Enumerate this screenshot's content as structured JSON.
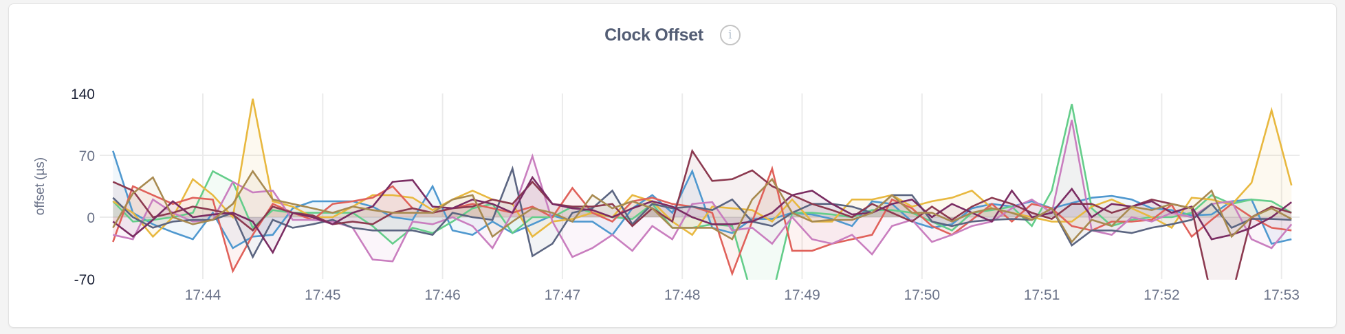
{
  "panel": {
    "title": "Clock Offset",
    "info_icon": "info-circle-icon"
  },
  "chart_data": {
    "type": "area",
    "title": "Clock Offset",
    "xlabel": "",
    "ylabel": "offset (µs)",
    "ylim": [
      -70,
      140
    ],
    "yticks": [
      {
        "value": 140,
        "label": "140",
        "color": "#1a2035"
      },
      {
        "value": 70,
        "label": "70",
        "color": "#6b7389"
      },
      {
        "value": 0,
        "label": "0",
        "color": "#6b7389"
      },
      {
        "value": -70,
        "label": "-70",
        "color": "#1a2035"
      }
    ],
    "xticks": [
      "17:44",
      "17:45",
      "17:46",
      "17:47",
      "17:48",
      "17:49",
      "17:50",
      "17:51",
      "17:52",
      "17:53"
    ],
    "x_start": "17:43:15",
    "x_interval_seconds": 10,
    "grid": true,
    "fill_to_zero": true,
    "series": [
      {
        "color": "#4f98cf",
        "values": [
          75,
          5,
          -8,
          -17,
          -25,
          5,
          -35,
          -22,
          -20,
          10,
          18,
          18,
          18,
          12,
          0,
          -3,
          35,
          -15,
          -20,
          -5,
          -18,
          -8,
          2,
          -5,
          -5,
          -20,
          10,
          25,
          5,
          52,
          -12,
          -18,
          -2,
          -2,
          5,
          3,
          -2,
          -10,
          18,
          15,
          -5,
          -12,
          -8,
          10,
          15,
          12,
          18,
          10,
          16,
          22,
          24,
          20,
          10,
          8,
          2,
          3,
          18,
          20,
          -30,
          -25
        ]
      },
      {
        "color": "#64cd8a",
        "values": [
          18,
          -5,
          -3,
          0,
          5,
          52,
          40,
          -12,
          8,
          5,
          5,
          5,
          5,
          -10,
          -30,
          -12,
          -18,
          -5,
          10,
          15,
          -18,
          0,
          0,
          12,
          5,
          0,
          -2,
          15,
          -12,
          -12,
          -8,
          -10,
          -90,
          -90,
          5,
          5,
          3,
          0,
          8,
          8,
          5,
          -5,
          -15,
          5,
          8,
          12,
          -10,
          30,
          128,
          10,
          -10,
          -3,
          0,
          0,
          5,
          25,
          15,
          20,
          18,
          5
        ]
      },
      {
        "color": "#e8b83f",
        "values": [
          18,
          5,
          -22,
          0,
          43,
          25,
          0,
          134,
          18,
          12,
          0,
          0,
          12,
          25,
          25,
          22,
          8,
          20,
          30,
          20,
          15,
          -22,
          -5,
          -2,
          5,
          0,
          25,
          18,
          -5,
          -20,
          12,
          10,
          8,
          -5,
          20,
          -5,
          -5,
          20,
          20,
          25,
          12,
          18,
          22,
          30,
          10,
          5,
          0,
          -5,
          -5,
          12,
          20,
          10,
          0,
          -12,
          22,
          20,
          14,
          39,
          121,
          36
        ]
      },
      {
        "color": "#e0615a",
        "values": [
          -28,
          35,
          25,
          15,
          22,
          20,
          -61,
          -20,
          15,
          5,
          -3,
          15,
          18,
          22,
          35,
          10,
          5,
          10,
          15,
          10,
          5,
          12,
          0,
          33,
          5,
          -5,
          18,
          22,
          15,
          12,
          5,
          -64,
          -5,
          55,
          -38,
          -38,
          -30,
          -25,
          -20,
          20,
          10,
          -10,
          -20,
          -3,
          15,
          -5,
          15,
          10,
          -10,
          -15,
          -5,
          -5,
          -3,
          14,
          -22,
          -3,
          15,
          0,
          -12,
          -15
        ]
      },
      {
        "color": "#c97ebf",
        "values": [
          -20,
          -25,
          20,
          5,
          -5,
          -3,
          40,
          28,
          30,
          -3,
          -3,
          -5,
          -12,
          -48,
          -50,
          -5,
          -8,
          0,
          -10,
          -35,
          5,
          69,
          -5,
          -45,
          -35,
          -20,
          -38,
          -10,
          -25,
          15,
          17,
          -15,
          -12,
          -30,
          0,
          -25,
          -30,
          -20,
          -42,
          -10,
          -3,
          -28,
          -20,
          -10,
          -5,
          10,
          20,
          5,
          110,
          -15,
          -20,
          0,
          -5,
          5,
          0,
          15,
          18,
          -25,
          -35,
          -8
        ]
      },
      {
        "color": "#5b6581",
        "values": [
          22,
          0,
          -12,
          -5,
          -3,
          -3,
          5,
          -45,
          -3,
          -12,
          -8,
          -3,
          -12,
          -15,
          -15,
          -15,
          -20,
          5,
          0,
          -3,
          55,
          -44,
          -30,
          5,
          10,
          30,
          -8,
          15,
          10,
          12,
          8,
          20,
          -5,
          -10,
          5,
          15,
          15,
          12,
          5,
          25,
          25,
          -5,
          -10,
          -5,
          -3,
          -2,
          -3,
          10,
          -32,
          -15,
          -15,
          -18,
          -12,
          -8,
          -3,
          15,
          -12,
          -2,
          -2,
          -3
        ]
      },
      {
        "color": "#8c3a50",
        "values": [
          40,
          30,
          0,
          5,
          12,
          8,
          3,
          -15,
          12,
          5,
          2,
          -8,
          -5,
          -8,
          5,
          10,
          5,
          10,
          12,
          20,
          15,
          40,
          15,
          12,
          12,
          15,
          -10,
          10,
          -5,
          75,
          41,
          43,
          53,
          35,
          25,
          15,
          8,
          0,
          15,
          5,
          -5,
          12,
          -3,
          12,
          22,
          15,
          5,
          -2,
          15,
          15,
          5,
          12,
          20,
          15,
          10,
          -90,
          -90,
          0,
          12,
          5
        ]
      },
      {
        "color": "#7a2c62",
        "values": [
          -5,
          -22,
          -3,
          18,
          0,
          3,
          5,
          -5,
          -40,
          5,
          0,
          -8,
          5,
          12,
          40,
          42,
          12,
          10,
          20,
          15,
          5,
          45,
          15,
          10,
          8,
          0,
          10,
          18,
          12,
          0,
          -8,
          -8,
          -5,
          5,
          25,
          30,
          15,
          3,
          5,
          15,
          20,
          0,
          15,
          5,
          -5,
          30,
          0,
          5,
          32,
          0,
          15,
          12,
          18,
          5,
          12,
          -25,
          -20,
          -12,
          0,
          17
        ]
      },
      {
        "color": "#a88a50",
        "values": [
          -12,
          27,
          45,
          0,
          -8,
          -3,
          15,
          52,
          20,
          15,
          10,
          5,
          12,
          8,
          5,
          5,
          5,
          20,
          25,
          -22,
          -5,
          10,
          5,
          -5,
          25,
          10,
          18,
          10,
          -12,
          -12,
          -12,
          -25,
          20,
          43,
          5,
          -5,
          -3,
          -3,
          5,
          25,
          5,
          5,
          -5,
          5,
          10,
          5,
          -3,
          10,
          -28,
          -3,
          -10,
          12,
          8,
          15,
          10,
          30,
          -22,
          0,
          10,
          -2
        ]
      }
    ]
  }
}
